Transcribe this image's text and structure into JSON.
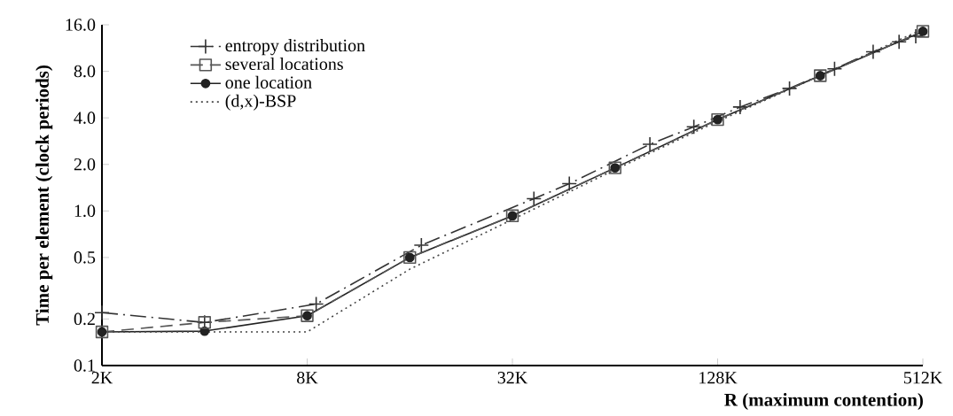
{
  "chart_data": {
    "type": "line",
    "xlabel": "R (maximum contention)",
    "ylabel": "Time per element (clock periods)",
    "log": "xy",
    "grid": false,
    "legend": "top left",
    "xlim": [
      2,
      512
    ],
    "xticks": [
      {
        "value": 2,
        "label": "2K"
      },
      {
        "value": 8,
        "label": "8K"
      },
      {
        "value": 32,
        "label": "32K"
      },
      {
        "value": 128,
        "label": "128K"
      },
      {
        "value": 512,
        "label": "512K"
      }
    ],
    "ylim": [
      0.1,
      16
    ],
    "yticks": [
      {
        "value": 0.1,
        "label": "0.1"
      },
      {
        "value": 0.2,
        "label": "0.2"
      },
      {
        "value": 0.5,
        "label": "0.5"
      },
      {
        "value": 1,
        "label": "1.0"
      },
      {
        "value": 2,
        "label": "2.0"
      },
      {
        "value": 4,
        "label": "4.0"
      },
      {
        "value": 8,
        "label": "8.0"
      },
      {
        "value": 16,
        "label": "16.0"
      }
    ],
    "series": [
      {
        "name": "entropy distribution",
        "color": "#333333",
        "marker": "cross",
        "line_style": "dashdot",
        "x": [
          2,
          4,
          8.5,
          17.3,
          37,
          47,
          81,
          109,
          149,
          208,
          282,
          366,
          436,
          488
        ],
        "values": [
          0.22,
          0.19,
          0.25,
          0.6,
          1.2,
          1.5,
          2.7,
          3.5,
          4.7,
          6.2,
          8.3,
          10.7,
          12.4,
          13.5
        ]
      },
      {
        "name": "several locations",
        "color": "#555555",
        "marker": "square",
        "line_style": "dashed",
        "x": [
          2,
          4,
          8,
          16,
          32,
          64,
          128,
          256,
          512
        ],
        "values": [
          0.165,
          0.19,
          0.21,
          0.5,
          0.93,
          1.9,
          3.9,
          7.5,
          14.5
        ]
      },
      {
        "name": "one location",
        "color": "#222222",
        "marker": "circle",
        "line_style": "solid",
        "x": [
          2,
          4,
          8,
          16,
          32,
          64,
          128,
          256,
          512
        ],
        "values": [
          0.165,
          0.167,
          0.21,
          0.5,
          0.93,
          1.9,
          3.9,
          7.5,
          14.5
        ]
      },
      {
        "name": "(d,x)-BSP",
        "color": "#444444",
        "marker": "none",
        "line_style": "dotted",
        "x": [
          2,
          8,
          16,
          32,
          64,
          128,
          256,
          512
        ],
        "values": [
          0.165,
          0.165,
          0.42,
          0.88,
          1.85,
          3.8,
          7.5,
          15
        ]
      }
    ]
  }
}
